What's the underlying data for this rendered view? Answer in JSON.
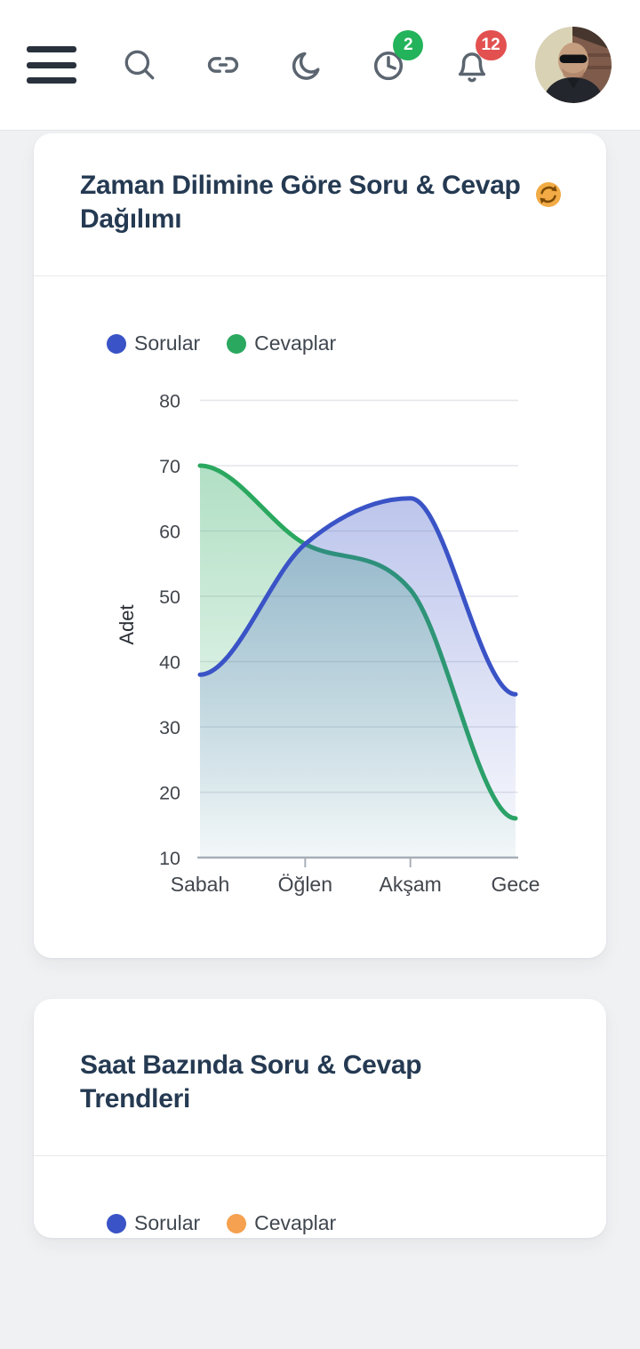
{
  "header": {
    "menu_icon": "hamburger",
    "search_icon": "magnifier",
    "link_icon": "chain-link",
    "theme_icon": "crescent-moon",
    "history_icon": "clock",
    "history_badge": "2",
    "notifications_icon": "bell",
    "notifications_badge": "12",
    "avatar": "user-photo",
    "colors": {
      "history_badge": "#23b35a",
      "notifications_badge": "#e25150",
      "icon_stroke": "#5b6570"
    }
  },
  "cards": [
    {
      "refresh_icon": "orange-sync-arrows",
      "refresh_color": "#ef9f36"
    },
    {}
  ],
  "chart_data": [
    {
      "type": "area",
      "title": "Zaman Dilimine Göre Soru & Cevap Dağılımı",
      "categories": [
        "Sabah",
        "Öğlen",
        "Akşam",
        "Gece"
      ],
      "series": [
        {
          "name": "Sorular",
          "color": "#3a53c6",
          "values": [
            38,
            58,
            65,
            35
          ]
        },
        {
          "name": "Cevaplar",
          "color": "#2aa85f",
          "values": [
            70,
            58,
            51,
            16
          ]
        }
      ],
      "xlabel": "",
      "ylabel": "Adet",
      "ylim": [
        10,
        80
      ],
      "yticks": [
        10,
        20,
        30,
        40,
        50,
        60,
        70,
        80
      ],
      "grid": true,
      "legend_position": "top-left",
      "curve": "monotone-smooth",
      "fill": "vertical-gradient-fade"
    },
    {
      "type": "line",
      "title": "Saat Bazında Soru & Cevap Trendleri",
      "series": [
        {
          "name": "Sorular",
          "color": "#3a53c6"
        },
        {
          "name": "Cevaplar",
          "color": "#f5a14f"
        }
      ],
      "legend_position": "top-left"
    }
  ]
}
